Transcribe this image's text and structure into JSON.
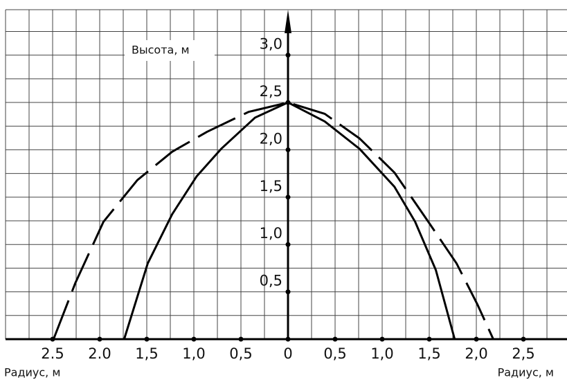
{
  "chart_data": {
    "type": "line",
    "ylabel": "Высота, м",
    "xlabel_left": "Радиус, м",
    "xlabel_right": "Радиус, м",
    "xlim": [
      -3.0,
      2.963
    ],
    "ylim": [
      0,
      3.48
    ],
    "xticks": [
      {
        "value": -2.5,
        "label": "2.5"
      },
      {
        "value": -2.0,
        "label": "2.0"
      },
      {
        "value": -1.5,
        "label": "1,5"
      },
      {
        "value": -1.0,
        "label": "1,0"
      },
      {
        "value": -0.5,
        "label": "0,5"
      },
      0,
      {
        "value": 0.5,
        "label": "0,5"
      },
      {
        "value": 1.0,
        "label": "1,0"
      },
      {
        "value": 1.5,
        "label": "1,5"
      },
      {
        "value": 2.0,
        "label": "2,0"
      },
      {
        "value": 2.5,
        "label": "2,5"
      }
    ],
    "yticks": [
      {
        "value": 0.5,
        "label": "0,5"
      },
      {
        "value": 1.0,
        "label": "1,0"
      },
      {
        "value": 1.5,
        "label": "1,5"
      },
      {
        "value": 2.0,
        "label": "2,0"
      },
      {
        "value": 2.5,
        "label": "2,5"
      },
      {
        "value": 3.0,
        "label": "3,0"
      }
    ],
    "grid": true,
    "xgrid": [
      -3.0,
      -2.75,
      -2.5,
      -2.25,
      -2.0,
      -1.75,
      -1.5,
      -1.25,
      -1.0,
      -0.75,
      -0.5,
      -0.25,
      0.25,
      0.5,
      0.75,
      1.0,
      1.25,
      1.5,
      1.75,
      2.0,
      2.25,
      2.5,
      2.75
    ],
    "ygrid": [
      0.25,
      0.5,
      0.75,
      1.0,
      1.25,
      1.5,
      1.75,
      2.0,
      2.25,
      2.5,
      2.75,
      3.0,
      3.25,
      3.48
    ],
    "series": [
      {
        "color": "#000000",
        "dash": false,
        "x": [
          -1.74,
          -1.49,
          -1.23,
          -0.97,
          -0.71,
          -0.35,
          0,
          0.39,
          0.76,
          1.13,
          1.35,
          1.57,
          1.77
        ],
        "values": [
          0,
          0.8,
          1.32,
          1.72,
          2.01,
          2.34,
          2.5,
          2.3,
          2.01,
          1.61,
          1.24,
          0.73,
          0
        ]
      },
      {
        "color": "#000000",
        "dash": true,
        "x": [
          -2.49,
          -2.26,
          -1.96,
          -1.6,
          -1.23,
          -0.86,
          -0.42,
          0,
          0.39,
          0.76,
          1.13,
          1.49,
          1.79,
          2.01,
          2.18
        ],
        "values": [
          0,
          0.59,
          1.24,
          1.68,
          1.98,
          2.19,
          2.4,
          2.5,
          2.38,
          2.12,
          1.76,
          1.24,
          0.8,
          0.37,
          0
        ]
      }
    ]
  }
}
